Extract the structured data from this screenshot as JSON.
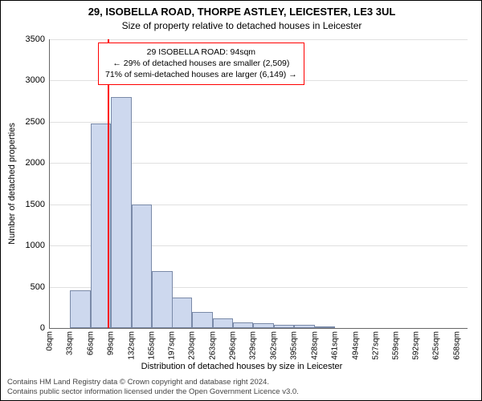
{
  "header": {
    "address": "29, ISOBELLA ROAD, THORPE ASTLEY, LEICESTER, LE3 3UL",
    "subtitle": "Size of property relative to detached houses in Leicester"
  },
  "axes": {
    "ylabel": "Number of detached properties",
    "xlabel": "Distribution of detached houses by size in Leicester",
    "ylim": [
      0,
      3500
    ],
    "ytick_step": 500,
    "yticks": [
      0,
      500,
      1000,
      1500,
      2000,
      2500,
      3000,
      3500
    ],
    "xlim": [
      0,
      675
    ],
    "xtick_step": 33,
    "xtick_unit": "sqm",
    "xticks": [
      0,
      33,
      66,
      99,
      132,
      165,
      197,
      230,
      263,
      296,
      329,
      362,
      395,
      428,
      461,
      494,
      527,
      559,
      592,
      625,
      658
    ]
  },
  "chart": {
    "type": "histogram",
    "bar_color": "#cdd8ee",
    "bar_border_color": "#7a8aa8",
    "grid_color": "#e0e0e0",
    "background_color": "#ffffff",
    "bin_width": 33,
    "bins": [
      {
        "start": 0,
        "count": 0
      },
      {
        "start": 33,
        "count": 460
      },
      {
        "start": 66,
        "count": 2480
      },
      {
        "start": 99,
        "count": 2800
      },
      {
        "start": 132,
        "count": 1500
      },
      {
        "start": 165,
        "count": 690
      },
      {
        "start": 197,
        "count": 370
      },
      {
        "start": 230,
        "count": 190
      },
      {
        "start": 263,
        "count": 120
      },
      {
        "start": 296,
        "count": 70
      },
      {
        "start": 329,
        "count": 60
      },
      {
        "start": 362,
        "count": 40
      },
      {
        "start": 395,
        "count": 35
      },
      {
        "start": 428,
        "count": 20
      },
      {
        "start": 461,
        "count": 0
      },
      {
        "start": 494,
        "count": 0
      },
      {
        "start": 527,
        "count": 0
      },
      {
        "start": 559,
        "count": 0
      },
      {
        "start": 592,
        "count": 0
      },
      {
        "start": 625,
        "count": 0
      }
    ]
  },
  "marker": {
    "value_sqm": 94,
    "color": "#ff0000"
  },
  "info_box": {
    "border_color": "#ff0000",
    "line1": "29 ISOBELLA ROAD: 94sqm",
    "line2": "← 29% of detached houses are smaller (2,509)",
    "line3": "71% of semi-detached houses are larger (6,149) →"
  },
  "footer": {
    "line1": "Contains HM Land Registry data © Crown copyright and database right 2024.",
    "line2": "Contains public sector information licensed under the Open Government Licence v3.0."
  },
  "style": {
    "title_fontsize": 13,
    "subtitle_fontsize": 12,
    "label_fontsize": 11,
    "tick_fontsize": 10,
    "footer_fontsize": 9.5
  }
}
